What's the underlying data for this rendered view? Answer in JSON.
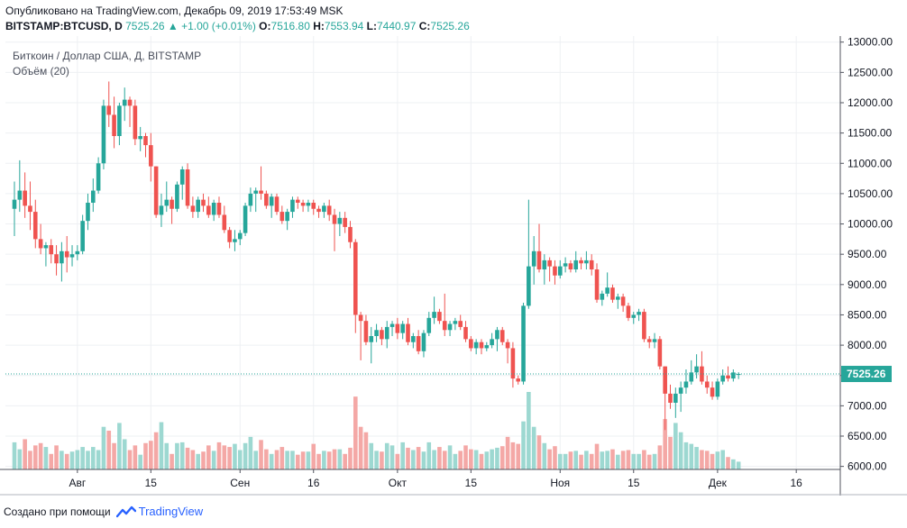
{
  "header": {
    "published": "Опубликовано на TradingView.com, Декабрь 09, 2019 17:53:49 MSK",
    "symbol": "BITSTAMP:BTCUSD, D",
    "last": "7525.26",
    "change_icon": "triangle-up-icon",
    "change": "+1.00 (+0.01%)",
    "o_label": "O:",
    "o_value": "7516.80",
    "h_label": "H:",
    "h_value": "7553.94",
    "l_label": "L:",
    "l_value": "7440.97",
    "c_label": "C:",
    "c_value": "7525.26"
  },
  "legend": {
    "title": "Биткоин / Доллар США, Д, BITSTAMP",
    "volume": "Объём (20)"
  },
  "footer": {
    "created_with": "Создано при помощи",
    "brand": "TradingView",
    "brand_icon": "tradingview-logo-icon"
  },
  "colors": {
    "up": "#26a69a",
    "down": "#ef5350",
    "up_volume": "#9dd8d1",
    "down_volume": "#f4a8a6",
    "grid": "#eef0f3",
    "last_price": "#26a69a"
  },
  "chart_data": {
    "type": "candlestick",
    "title": "Биткоин / Доллар США, Д, BITSTAMP",
    "last_price": 7525.26,
    "last_price_label": "7525.26",
    "ylim": [
      5950,
      13100
    ],
    "y_ticks": [
      {
        "value": 13000,
        "label": "13000.00"
      },
      {
        "value": 12500,
        "label": "12500.00"
      },
      {
        "value": 12000,
        "label": "12000.00"
      },
      {
        "value": 11500,
        "label": "11500.00"
      },
      {
        "value": 11000,
        "label": "11000.00"
      },
      {
        "value": 10500,
        "label": "10500.00"
      },
      {
        "value": 10000,
        "label": "10000.00"
      },
      {
        "value": 9500,
        "label": "9500.00"
      },
      {
        "value": 9000,
        "label": "9000.00"
      },
      {
        "value": 8500,
        "label": "8500.00"
      },
      {
        "value": 8000,
        "label": "8000.00"
      },
      {
        "value": 7500,
        "label": "7500.00"
      },
      {
        "value": 7000,
        "label": "7000.00"
      },
      {
        "value": 6500,
        "label": "6500.00"
      },
      {
        "value": 6000,
        "label": "6000.00"
      }
    ],
    "x_ticks": [
      {
        "day": 12,
        "label": "Авг"
      },
      {
        "day": 26,
        "label": "15"
      },
      {
        "day": 43,
        "label": "Сен"
      },
      {
        "day": 57,
        "label": "16"
      },
      {
        "day": 73,
        "label": "Окт"
      },
      {
        "day": 87,
        "label": "15"
      },
      {
        "day": 104,
        "label": "Ноя"
      },
      {
        "day": 118,
        "label": "15"
      },
      {
        "day": 134,
        "label": "Дек"
      },
      {
        "day": 149,
        "label": "16"
      }
    ],
    "volume_max": 10,
    "candles": [
      {
        "o": 10250,
        "h": 10700,
        "l": 9800,
        "c": 10400,
        "v": 3.5
      },
      {
        "o": 10400,
        "h": 11050,
        "l": 10200,
        "c": 10550,
        "v": 2.6
      },
      {
        "o": 10550,
        "h": 10850,
        "l": 10100,
        "c": 10300,
        "v": 3.9
      },
      {
        "o": 10300,
        "h": 10700,
        "l": 9900,
        "c": 10200,
        "v": 2.4
      },
      {
        "o": 10200,
        "h": 10400,
        "l": 9600,
        "c": 9750,
        "v": 3.1
      },
      {
        "o": 9750,
        "h": 10000,
        "l": 9500,
        "c": 9600,
        "v": 3.4
      },
      {
        "o": 9600,
        "h": 9700,
        "l": 9300,
        "c": 9650,
        "v": 2.9
      },
      {
        "o": 9650,
        "h": 9750,
        "l": 9350,
        "c": 9500,
        "v": 2.0
      },
      {
        "o": 9500,
        "h": 9650,
        "l": 9150,
        "c": 9350,
        "v": 3.1
      },
      {
        "o": 9350,
        "h": 9700,
        "l": 9050,
        "c": 9550,
        "v": 2.4
      },
      {
        "o": 9550,
        "h": 9800,
        "l": 9200,
        "c": 9450,
        "v": 2.0
      },
      {
        "o": 9450,
        "h": 9650,
        "l": 9300,
        "c": 9500,
        "v": 2.3
      },
      {
        "o": 9500,
        "h": 9650,
        "l": 9400,
        "c": 9550,
        "v": 2.5
      },
      {
        "o": 9550,
        "h": 10150,
        "l": 9500,
        "c": 10050,
        "v": 2.9
      },
      {
        "o": 10050,
        "h": 10500,
        "l": 9900,
        "c": 10350,
        "v": 2.4
      },
      {
        "o": 10350,
        "h": 10750,
        "l": 10200,
        "c": 10550,
        "v": 2.9
      },
      {
        "o": 10550,
        "h": 11100,
        "l": 10500,
        "c": 11000,
        "v": 2.5
      },
      {
        "o": 11000,
        "h": 12050,
        "l": 10900,
        "c": 11950,
        "v": 5.5
      },
      {
        "o": 11950,
        "h": 12350,
        "l": 11600,
        "c": 11800,
        "v": 5.0
      },
      {
        "o": 11800,
        "h": 12100,
        "l": 11250,
        "c": 11450,
        "v": 3.4
      },
      {
        "o": 11450,
        "h": 12000,
        "l": 11300,
        "c": 11950,
        "v": 6.0
      },
      {
        "o": 11950,
        "h": 12250,
        "l": 11700,
        "c": 12050,
        "v": 3.9
      },
      {
        "o": 12050,
        "h": 12100,
        "l": 11600,
        "c": 11950,
        "v": 2.5
      },
      {
        "o": 11950,
        "h": 12050,
        "l": 11300,
        "c": 11400,
        "v": 3.1
      },
      {
        "o": 11400,
        "h": 11600,
        "l": 11200,
        "c": 11450,
        "v": 1.9
      },
      {
        "o": 11450,
        "h": 11500,
        "l": 11100,
        "c": 11300,
        "v": 3.4
      },
      {
        "o": 11300,
        "h": 11500,
        "l": 10700,
        "c": 10950,
        "v": 3.7
      },
      {
        "o": 10950,
        "h": 10950,
        "l": 10100,
        "c": 10150,
        "v": 4.8
      },
      {
        "o": 10150,
        "h": 10500,
        "l": 9950,
        "c": 10300,
        "v": 6.1
      },
      {
        "o": 10300,
        "h": 10700,
        "l": 10200,
        "c": 10400,
        "v": 3.4
      },
      {
        "o": 10400,
        "h": 10450,
        "l": 10000,
        "c": 10250,
        "v": 2.0
      },
      {
        "o": 10250,
        "h": 10700,
        "l": 10200,
        "c": 10650,
        "v": 3.4
      },
      {
        "o": 10650,
        "h": 10950,
        "l": 10400,
        "c": 10900,
        "v": 3.5
      },
      {
        "o": 10900,
        "h": 11000,
        "l": 10250,
        "c": 10300,
        "v": 2.8
      },
      {
        "o": 10300,
        "h": 10450,
        "l": 10100,
        "c": 10200,
        "v": 2.5
      },
      {
        "o": 10200,
        "h": 10450,
        "l": 10100,
        "c": 10400,
        "v": 2.0
      },
      {
        "o": 10400,
        "h": 10500,
        "l": 10200,
        "c": 10300,
        "v": 2.3
      },
      {
        "o": 10300,
        "h": 10450,
        "l": 10100,
        "c": 10150,
        "v": 3.1
      },
      {
        "o": 10150,
        "h": 10400,
        "l": 10050,
        "c": 10350,
        "v": 2.4
      },
      {
        "o": 10350,
        "h": 10450,
        "l": 10100,
        "c": 10150,
        "v": 3.5
      },
      {
        "o": 10150,
        "h": 10300,
        "l": 9850,
        "c": 9900,
        "v": 3.1
      },
      {
        "o": 9900,
        "h": 9950,
        "l": 9600,
        "c": 9700,
        "v": 2.9
      },
      {
        "o": 9700,
        "h": 9900,
        "l": 9550,
        "c": 9750,
        "v": 3.3
      },
      {
        "o": 9750,
        "h": 9900,
        "l": 9650,
        "c": 9850,
        "v": 2.5
      },
      {
        "o": 9850,
        "h": 10350,
        "l": 9800,
        "c": 10300,
        "v": 3.4
      },
      {
        "o": 10300,
        "h": 10600,
        "l": 10200,
        "c": 10500,
        "v": 4.2
      },
      {
        "o": 10500,
        "h": 10600,
        "l": 10200,
        "c": 10550,
        "v": 2.4
      },
      {
        "o": 10550,
        "h": 10950,
        "l": 10400,
        "c": 10500,
        "v": 3.8
      },
      {
        "o": 10500,
        "h": 10550,
        "l": 10250,
        "c": 10300,
        "v": 2.6
      },
      {
        "o": 10300,
        "h": 10500,
        "l": 10100,
        "c": 10450,
        "v": 2.0
      },
      {
        "o": 10450,
        "h": 10500,
        "l": 10150,
        "c": 10200,
        "v": 2.5
      },
      {
        "o": 10200,
        "h": 10300,
        "l": 10000,
        "c": 10050,
        "v": 2.9
      },
      {
        "o": 10050,
        "h": 10250,
        "l": 9900,
        "c": 10200,
        "v": 2.4
      },
      {
        "o": 10200,
        "h": 10450,
        "l": 10100,
        "c": 10400,
        "v": 2.4
      },
      {
        "o": 10400,
        "h": 10450,
        "l": 10250,
        "c": 10350,
        "v": 1.9
      },
      {
        "o": 10350,
        "h": 10400,
        "l": 10200,
        "c": 10300,
        "v": 2.3
      },
      {
        "o": 10300,
        "h": 10400,
        "l": 10200,
        "c": 10350,
        "v": 2.3
      },
      {
        "o": 10350,
        "h": 10400,
        "l": 10150,
        "c": 10250,
        "v": 3.3
      },
      {
        "o": 10250,
        "h": 10300,
        "l": 10100,
        "c": 10200,
        "v": 2.0
      },
      {
        "o": 10200,
        "h": 10350,
        "l": 10100,
        "c": 10300,
        "v": 2.4
      },
      {
        "o": 10300,
        "h": 10400,
        "l": 10050,
        "c": 10150,
        "v": 2.3
      },
      {
        "o": 10150,
        "h": 10250,
        "l": 9550,
        "c": 10000,
        "v": 2.6
      },
      {
        "o": 10000,
        "h": 10200,
        "l": 9800,
        "c": 10100,
        "v": 2.6
      },
      {
        "o": 10100,
        "h": 10200,
        "l": 9850,
        "c": 9950,
        "v": 2.0
      },
      {
        "o": 9950,
        "h": 10050,
        "l": 9600,
        "c": 9700,
        "v": 2.8
      },
      {
        "o": 9700,
        "h": 9750,
        "l": 8200,
        "c": 8500,
        "v": 9.4
      },
      {
        "o": 8500,
        "h": 8550,
        "l": 7750,
        "c": 8400,
        "v": 5.5
      },
      {
        "o": 8400,
        "h": 8500,
        "l": 8000,
        "c": 8050,
        "v": 4.8
      },
      {
        "o": 8050,
        "h": 8300,
        "l": 7700,
        "c": 8150,
        "v": 3.4
      },
      {
        "o": 8150,
        "h": 8350,
        "l": 8050,
        "c": 8250,
        "v": 2.4
      },
      {
        "o": 8250,
        "h": 8300,
        "l": 8000,
        "c": 8100,
        "v": 2.3
      },
      {
        "o": 8100,
        "h": 8400,
        "l": 7950,
        "c": 8300,
        "v": 3.4
      },
      {
        "o": 8300,
        "h": 8400,
        "l": 8150,
        "c": 8350,
        "v": 3.1
      },
      {
        "o": 8350,
        "h": 8450,
        "l": 8100,
        "c": 8200,
        "v": 2.0
      },
      {
        "o": 8200,
        "h": 8400,
        "l": 8100,
        "c": 8350,
        "v": 3.5
      },
      {
        "o": 8350,
        "h": 8450,
        "l": 8000,
        "c": 8050,
        "v": 2.8
      },
      {
        "o": 8050,
        "h": 8200,
        "l": 7950,
        "c": 8150,
        "v": 2.5
      },
      {
        "o": 8150,
        "h": 8250,
        "l": 7850,
        "c": 7900,
        "v": 2.9
      },
      {
        "o": 7900,
        "h": 8250,
        "l": 7800,
        "c": 8200,
        "v": 2.3
      },
      {
        "o": 8200,
        "h": 8550,
        "l": 8150,
        "c": 8450,
        "v": 3.5
      },
      {
        "o": 8450,
        "h": 8800,
        "l": 8350,
        "c": 8550,
        "v": 2.5
      },
      {
        "o": 8550,
        "h": 8600,
        "l": 8350,
        "c": 8400,
        "v": 2.9
      },
      {
        "o": 8400,
        "h": 8850,
        "l": 8150,
        "c": 8250,
        "v": 2.4
      },
      {
        "o": 8250,
        "h": 8400,
        "l": 8150,
        "c": 8350,
        "v": 3.1
      },
      {
        "o": 8350,
        "h": 8450,
        "l": 8250,
        "c": 8400,
        "v": 2.0
      },
      {
        "o": 8400,
        "h": 8500,
        "l": 8250,
        "c": 8300,
        "v": 2.4
      },
      {
        "o": 8300,
        "h": 8400,
        "l": 8050,
        "c": 8100,
        "v": 3.1
      },
      {
        "o": 8100,
        "h": 8150,
        "l": 7900,
        "c": 7950,
        "v": 2.6
      },
      {
        "o": 7950,
        "h": 8100,
        "l": 7850,
        "c": 8050,
        "v": 2.5
      },
      {
        "o": 8050,
        "h": 8100,
        "l": 7850,
        "c": 7950,
        "v": 2.0
      },
      {
        "o": 7950,
        "h": 8050,
        "l": 7900,
        "c": 8000,
        "v": 2.3
      },
      {
        "o": 8000,
        "h": 8200,
        "l": 7950,
        "c": 8100,
        "v": 2.6
      },
      {
        "o": 8100,
        "h": 8300,
        "l": 7900,
        "c": 8250,
        "v": 2.8
      },
      {
        "o": 8250,
        "h": 8300,
        "l": 8000,
        "c": 8050,
        "v": 3.0
      },
      {
        "o": 8050,
        "h": 8100,
        "l": 7700,
        "c": 7950,
        "v": 4.2
      },
      {
        "o": 7950,
        "h": 8050,
        "l": 7300,
        "c": 7450,
        "v": 3.5
      },
      {
        "o": 7450,
        "h": 7500,
        "l": 7350,
        "c": 7400,
        "v": 3.3
      },
      {
        "o": 7400,
        "h": 8700,
        "l": 7350,
        "c": 8650,
        "v": 6.2
      },
      {
        "o": 8650,
        "h": 10400,
        "l": 8600,
        "c": 9300,
        "v": 10.0
      },
      {
        "o": 9300,
        "h": 9800,
        "l": 9000,
        "c": 9550,
        "v": 5.5
      },
      {
        "o": 9550,
        "h": 10000,
        "l": 9200,
        "c": 9250,
        "v": 4.4
      },
      {
        "o": 9250,
        "h": 9500,
        "l": 9000,
        "c": 9400,
        "v": 3.4
      },
      {
        "o": 9400,
        "h": 9450,
        "l": 9050,
        "c": 9300,
        "v": 2.6
      },
      {
        "o": 9300,
        "h": 9400,
        "l": 9000,
        "c": 9150,
        "v": 3.0
      },
      {
        "o": 9150,
        "h": 9400,
        "l": 9100,
        "c": 9300,
        "v": 2.0
      },
      {
        "o": 9300,
        "h": 9450,
        "l": 9200,
        "c": 9350,
        "v": 2.0
      },
      {
        "o": 9350,
        "h": 9400,
        "l": 9200,
        "c": 9250,
        "v": 2.3
      },
      {
        "o": 9250,
        "h": 9550,
        "l": 9200,
        "c": 9400,
        "v": 2.4
      },
      {
        "o": 9400,
        "h": 9450,
        "l": 9250,
        "c": 9350,
        "v": 1.9
      },
      {
        "o": 9350,
        "h": 9550,
        "l": 9250,
        "c": 9400,
        "v": 2.4
      },
      {
        "o": 9400,
        "h": 9500,
        "l": 9150,
        "c": 9250,
        "v": 2.0
      },
      {
        "o": 9250,
        "h": 9350,
        "l": 8700,
        "c": 8750,
        "v": 3.3
      },
      {
        "o": 8750,
        "h": 8900,
        "l": 8650,
        "c": 8850,
        "v": 2.3
      },
      {
        "o": 8850,
        "h": 9200,
        "l": 8800,
        "c": 8950,
        "v": 2.4
      },
      {
        "o": 8950,
        "h": 9000,
        "l": 8700,
        "c": 8750,
        "v": 2.6
      },
      {
        "o": 8750,
        "h": 8850,
        "l": 8600,
        "c": 8800,
        "v": 1.9
      },
      {
        "o": 8800,
        "h": 8850,
        "l": 8550,
        "c": 8650,
        "v": 2.4
      },
      {
        "o": 8650,
        "h": 8700,
        "l": 8400,
        "c": 8450,
        "v": 2.5
      },
      {
        "o": 8450,
        "h": 8550,
        "l": 8350,
        "c": 8500,
        "v": 2.0
      },
      {
        "o": 8500,
        "h": 8600,
        "l": 8400,
        "c": 8550,
        "v": 2.0
      },
      {
        "o": 8550,
        "h": 8600,
        "l": 8050,
        "c": 8100,
        "v": 2.5
      },
      {
        "o": 8100,
        "h": 8150,
        "l": 7950,
        "c": 8050,
        "v": 1.9
      },
      {
        "o": 8050,
        "h": 8200,
        "l": 7950,
        "c": 8100,
        "v": 2.0
      },
      {
        "o": 8100,
        "h": 8150,
        "l": 7600,
        "c": 7650,
        "v": 3.1
      },
      {
        "o": 7650,
        "h": 7650,
        "l": 6600,
        "c": 7200,
        "v": 6.5
      },
      {
        "o": 7200,
        "h": 7350,
        "l": 6950,
        "c": 7050,
        "v": 4.2
      },
      {
        "o": 7050,
        "h": 7300,
        "l": 6800,
        "c": 7200,
        "v": 6.0
      },
      {
        "o": 7200,
        "h": 7400,
        "l": 6900,
        "c": 7300,
        "v": 4.8
      },
      {
        "o": 7300,
        "h": 7600,
        "l": 7200,
        "c": 7400,
        "v": 3.5
      },
      {
        "o": 7400,
        "h": 7750,
        "l": 7350,
        "c": 7550,
        "v": 3.3
      },
      {
        "o": 7550,
        "h": 7850,
        "l": 7450,
        "c": 7650,
        "v": 2.9
      },
      {
        "o": 7650,
        "h": 7900,
        "l": 7350,
        "c": 7400,
        "v": 2.5
      },
      {
        "o": 7400,
        "h": 7500,
        "l": 7200,
        "c": 7300,
        "v": 2.4
      },
      {
        "o": 7300,
        "h": 7400,
        "l": 7100,
        "c": 7150,
        "v": 2.0
      },
      {
        "o": 7150,
        "h": 7450,
        "l": 7100,
        "c": 7400,
        "v": 2.3
      },
      {
        "o": 7400,
        "h": 7600,
        "l": 7350,
        "c": 7500,
        "v": 2.5
      },
      {
        "o": 7500,
        "h": 7650,
        "l": 7400,
        "c": 7450,
        "v": 1.6
      },
      {
        "o": 7450,
        "h": 7600,
        "l": 7400,
        "c": 7550,
        "v": 1.3
      },
      {
        "o": 7516.8,
        "h": 7553.94,
        "l": 7440.97,
        "c": 7525.26,
        "v": 1.0
      }
    ]
  }
}
